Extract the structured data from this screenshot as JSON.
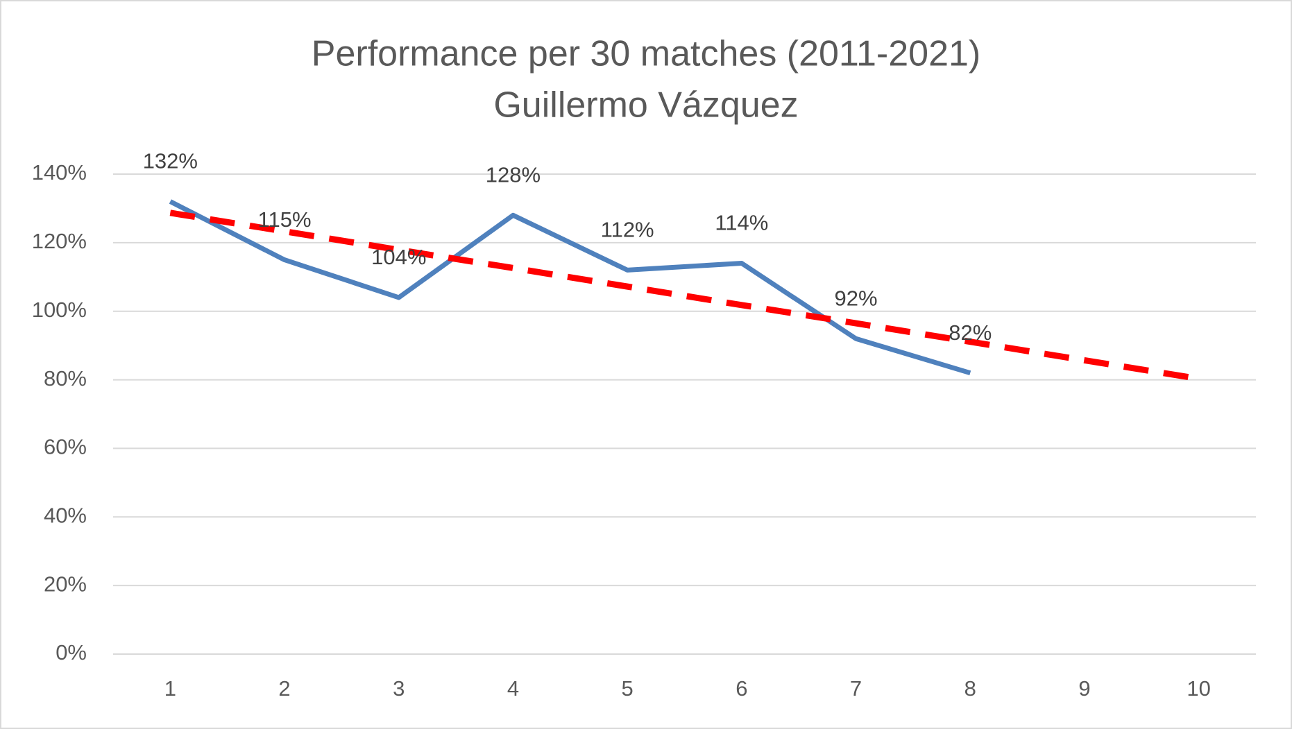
{
  "chart_data": {
    "type": "line",
    "title": "Performance per 30 matches (2011-2021)",
    "subtitle": "Guillermo Vázquez",
    "categories": [
      "1",
      "2",
      "3",
      "4",
      "5",
      "6",
      "7",
      "8",
      "9",
      "10"
    ],
    "series": [
      {
        "color": "#4f81bd",
        "values": [
          132,
          115,
          104,
          128,
          112,
          114,
          92,
          82,
          null,
          null
        ],
        "value_labels": [
          "132%",
          "115%",
          "104%",
          "128%",
          "112%",
          "114%",
          "92%",
          "82%",
          null,
          null
        ]
      },
      {
        "color": "#ff0000",
        "dashed": true,
        "values": [
          128.7,
          123.3,
          117.9,
          112.6,
          107.2,
          101.8,
          96.5,
          91.1,
          85.7,
          80.3
        ]
      }
    ],
    "ylim": [
      0,
      140
    ],
    "yticks": [
      {
        "value": 0,
        "label": "0%"
      },
      {
        "value": 20,
        "label": "20%"
      },
      {
        "value": 40,
        "label": "40%"
      },
      {
        "value": 60,
        "label": "60%"
      },
      {
        "value": 80,
        "label": "80%"
      },
      {
        "value": 100,
        "label": "100%"
      },
      {
        "value": 120,
        "label": "120%"
      },
      {
        "value": 140,
        "label": "140%"
      }
    ],
    "grid": true
  }
}
